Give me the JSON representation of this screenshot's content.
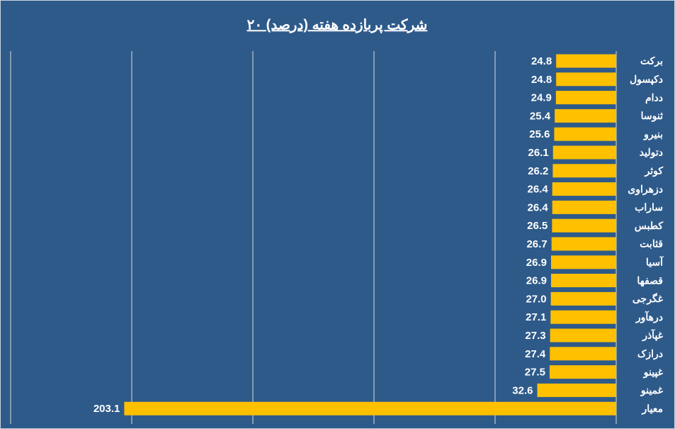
{
  "chart_data": {
    "type": "bar",
    "orientation": "horizontal",
    "title": "۲۰ شرکت پربازده هفته (درصد)",
    "categories": [
      "برکت",
      "دکپسول",
      "ددام",
      "ثنوسا",
      "بنیرو",
      "دتولید",
      "کوثر",
      "دزهراوی",
      "ساراب",
      "کطبس",
      "قثابت",
      "آسیا",
      "قصفها",
      "غگرجی",
      "درهآور",
      "غپآذر",
      "درازک",
      "غپینو",
      "غمینو",
      "معیار"
    ],
    "values": [
      24.8,
      24.8,
      24.9,
      25.4,
      25.6,
      26.1,
      26.2,
      26.4,
      26.4,
      26.5,
      26.7,
      26.9,
      26.9,
      27.0,
      27.1,
      27.3,
      27.4,
      27.5,
      32.6,
      203.1
    ],
    "value_labels": [
      "24.8",
      "24.8",
      "24.9",
      "25.4",
      "25.6",
      "26.1",
      "26.2",
      "26.4",
      "26.4",
      "26.5",
      "26.7",
      "26.9",
      "26.9",
      "27.0",
      "27.1",
      "27.3",
      "27.4",
      "27.5",
      "32.6",
      "203.1"
    ],
    "color": "#ffc000",
    "xlim": [
      0,
      250
    ],
    "xticks": [
      0,
      50,
      100,
      150,
      200,
      250
    ],
    "x_reversed": true,
    "grid": true
  }
}
